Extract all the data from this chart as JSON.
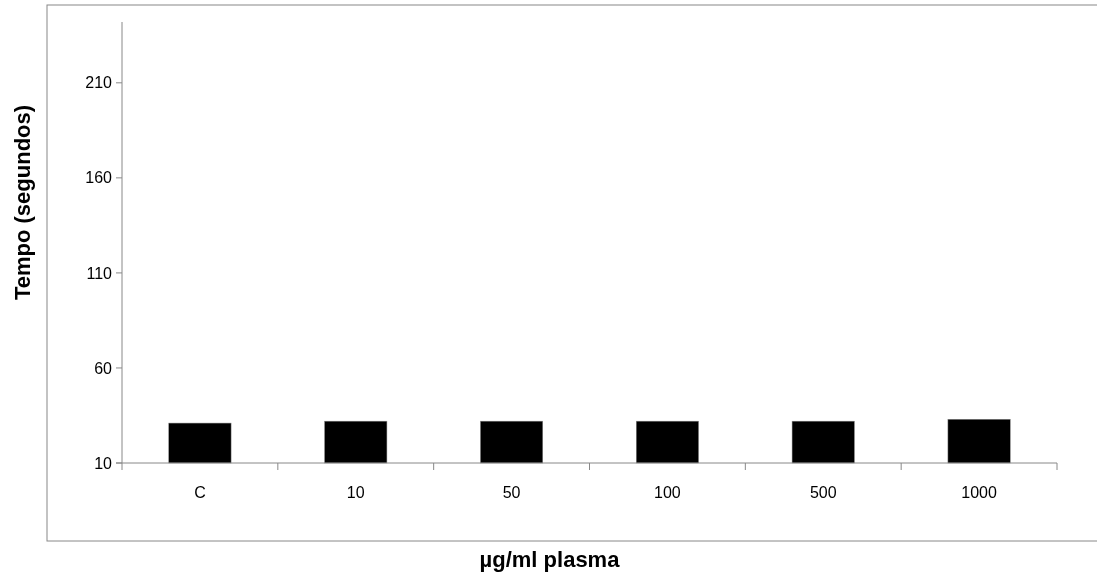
{
  "chart_data": {
    "type": "bar",
    "xlabel": "µg/ml plasma",
    "ylabel": "Tempo (segundos)",
    "categories": [
      "C",
      "10",
      "50",
      "100",
      "500",
      "1000"
    ],
    "values": [
      31,
      32,
      32,
      32,
      32,
      33
    ],
    "color": "#000000",
    "ylim": [
      10,
      242
    ],
    "yticks": [
      10,
      60,
      110,
      160,
      210
    ],
    "grid": false
  }
}
